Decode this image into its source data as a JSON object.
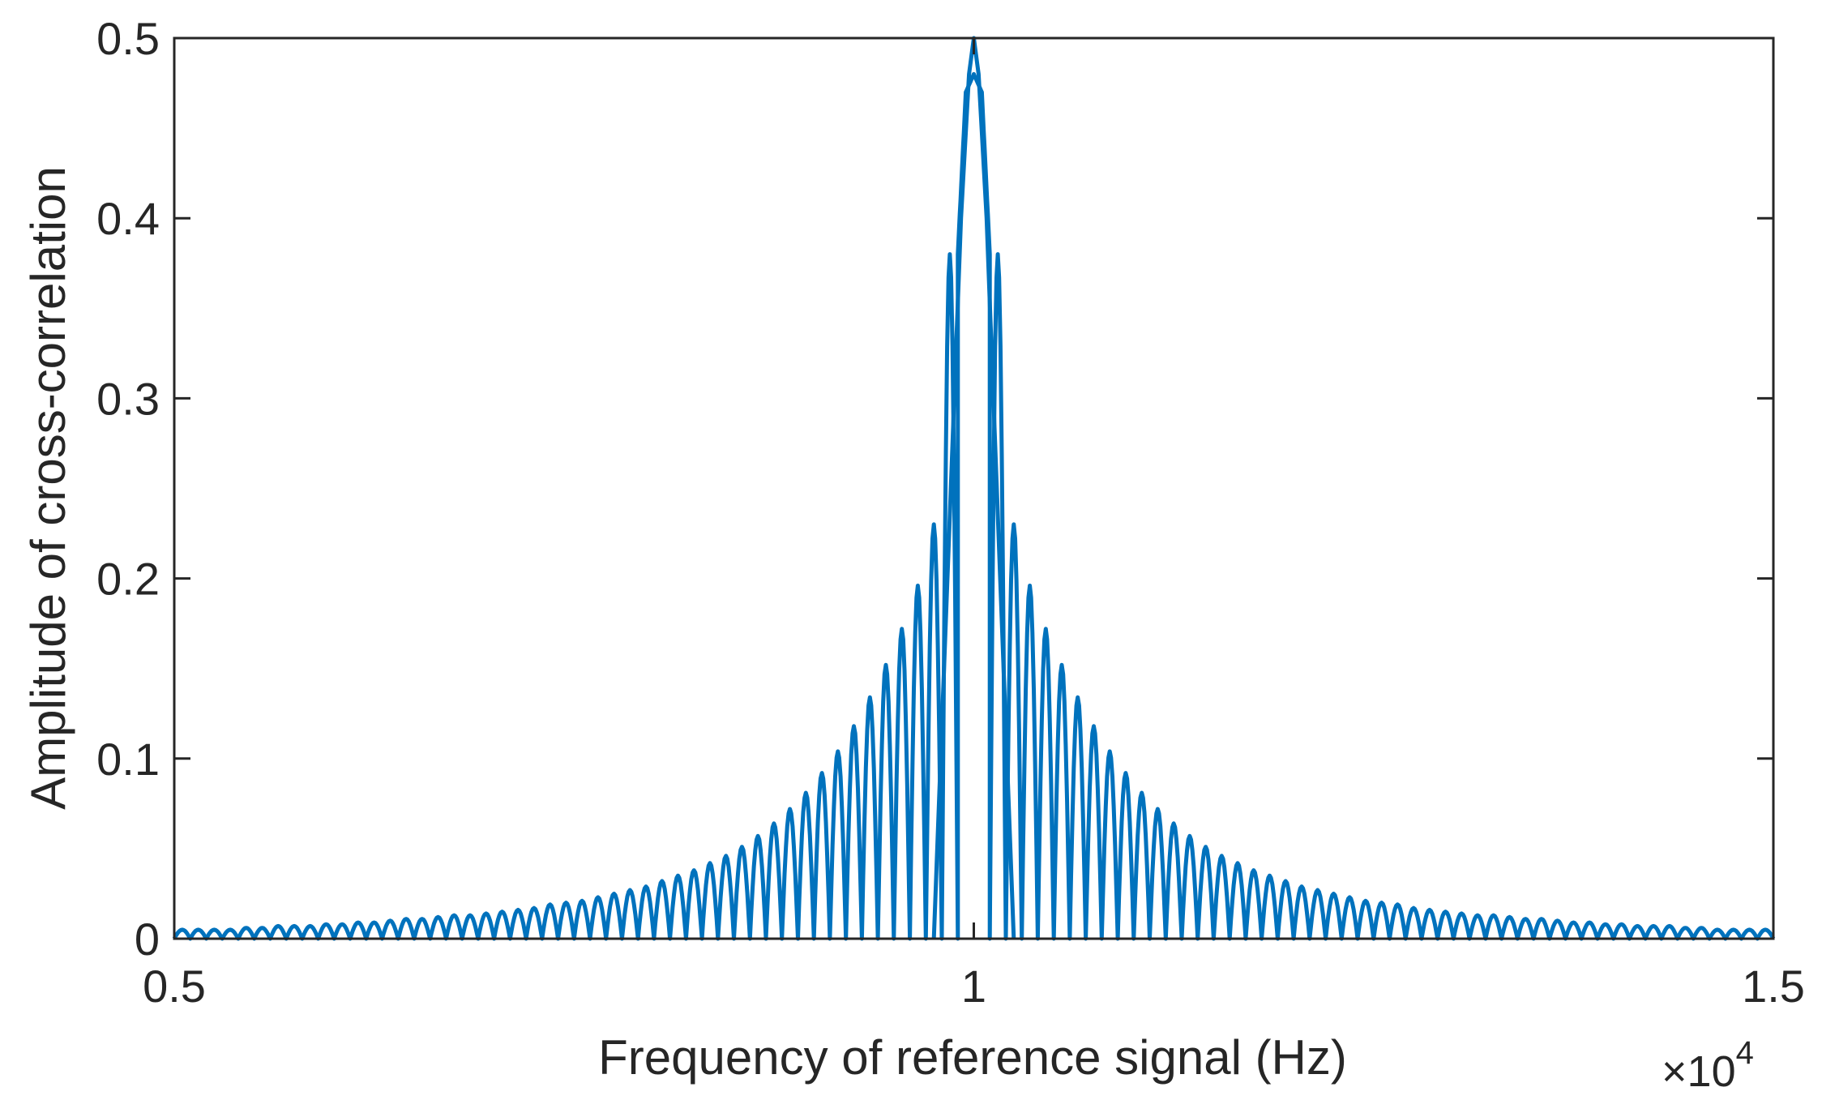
{
  "chart_data": {
    "type": "line",
    "title": "",
    "xlabel": "Frequency of reference signal (Hz)",
    "ylabel": "Amplitude of cross-correlation",
    "x_exponent_label": {
      "prefix": "×10",
      "power": "4"
    },
    "xlim": [
      0.5,
      1.5
    ],
    "ylim": [
      0,
      0.5
    ],
    "xticks": [
      0.5,
      1,
      1.5
    ],
    "xtick_labels": [
      "0.5",
      "1",
      "1.5"
    ],
    "yticks": [
      0,
      0.1,
      0.2,
      0.3,
      0.4,
      0.5
    ],
    "ytick_labels": [
      "0",
      "0.1",
      "0.2",
      "0.3",
      "0.4",
      "0.5"
    ],
    "grid": false,
    "series": [
      {
        "color": "#0072BD",
        "x": [
          0.5,
          0.51,
          0.52,
          0.53,
          0.54,
          0.55,
          0.56,
          0.57,
          0.58,
          0.59,
          0.6,
          0.61,
          0.62,
          0.63,
          0.64,
          0.65,
          0.66,
          0.67,
          0.68,
          0.69,
          0.7,
          0.71,
          0.72,
          0.73,
          0.74,
          0.75,
          0.76,
          0.77,
          0.78,
          0.79,
          0.8,
          0.81,
          0.82,
          0.83,
          0.84,
          0.85,
          0.86,
          0.87,
          0.88,
          0.89,
          0.9,
          0.91,
          0.92,
          0.93,
          0.94,
          0.95,
          0.96,
          0.97,
          0.98,
          0.99,
          0.995,
          1.0,
          1.005,
          1.01,
          1.02,
          1.03,
          1.04,
          1.05,
          1.06,
          1.07,
          1.08,
          1.09,
          1.1,
          1.11,
          1.12,
          1.13,
          1.14,
          1.15,
          1.16,
          1.17,
          1.18,
          1.19,
          1.2,
          1.21,
          1.22,
          1.23,
          1.24,
          1.25,
          1.26,
          1.27,
          1.28,
          1.29,
          1.3,
          1.31,
          1.32,
          1.33,
          1.34,
          1.35,
          1.36,
          1.37,
          1.38,
          1.39,
          1.4,
          1.41,
          1.42,
          1.43,
          1.44,
          1.45,
          1.46,
          1.47,
          1.48,
          1.49,
          1.5
        ],
        "y": [
          0.003,
          0.005,
          0.005,
          0.005,
          0.005,
          0.006,
          0.006,
          0.007,
          0.007,
          0.007,
          0.008,
          0.008,
          0.009,
          0.009,
          0.01,
          0.011,
          0.011,
          0.012,
          0.013,
          0.013,
          0.014,
          0.015,
          0.016,
          0.017,
          0.019,
          0.02,
          0.021,
          0.023,
          0.025,
          0.027,
          0.029,
          0.032,
          0.035,
          0.038,
          0.042,
          0.046,
          0.051,
          0.057,
          0.064,
          0.072,
          0.081,
          0.092,
          0.104,
          0.118,
          0.134,
          0.152,
          0.172,
          0.196,
          0.23,
          0.38,
          0.47,
          0.48,
          0.47,
          0.38,
          0.23,
          0.196,
          0.172,
          0.152,
          0.134,
          0.118,
          0.104,
          0.092,
          0.081,
          0.072,
          0.064,
          0.057,
          0.051,
          0.046,
          0.042,
          0.038,
          0.035,
          0.032,
          0.029,
          0.027,
          0.025,
          0.023,
          0.021,
          0.02,
          0.019,
          0.017,
          0.016,
          0.015,
          0.014,
          0.013,
          0.013,
          0.012,
          0.011,
          0.011,
          0.01,
          0.009,
          0.009,
          0.008,
          0.008,
          0.007,
          0.007,
          0.007,
          0.006,
          0.006,
          0.005,
          0.005,
          0.005,
          0.005,
          0.004
        ]
      }
    ],
    "envelope_note_values": {
      "main_peak": 0.5,
      "first_sidelobe_peak": 0.109,
      "second_sidelobe_peak": 0.064,
      "third_sidelobe_peak": 0.045
    }
  }
}
